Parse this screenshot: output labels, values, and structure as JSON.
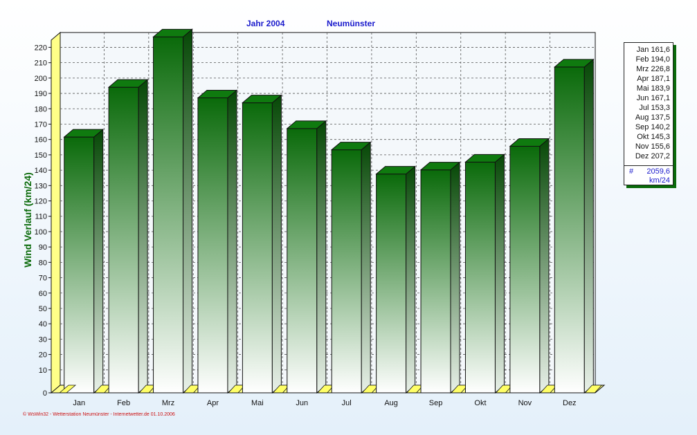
{
  "chart_data": {
    "type": "bar",
    "title_year": "Jahr  2004",
    "title_station": "Neumünster",
    "ylabel": "Wind Verlauf  (km/24)",
    "ylim": [
      0,
      230
    ],
    "yticks": [
      0,
      10,
      20,
      30,
      40,
      50,
      60,
      70,
      80,
      90,
      100,
      110,
      120,
      130,
      140,
      150,
      160,
      170,
      180,
      190,
      200,
      210,
      220
    ],
    "grid": true,
    "categories": [
      "Jan",
      "Feb",
      "Mrz",
      "Apr",
      "Mai",
      "Jun",
      "Jul",
      "Aug",
      "Sep",
      "Okt",
      "Nov",
      "Dez"
    ],
    "values": [
      161.6,
      194.0,
      226.8,
      187.1,
      183.9,
      167.1,
      153.3,
      137.5,
      140.2,
      145.3,
      155.6,
      207.2
    ],
    "legend": {
      "placement": "right",
      "entries": [
        {
          "label": "Jan",
          "value": "161,6"
        },
        {
          "label": "Feb",
          "value": "194,0"
        },
        {
          "label": "Mrz",
          "value": "226,8"
        },
        {
          "label": "Apr",
          "value": "187,1"
        },
        {
          "label": "Mai",
          "value": "183,9"
        },
        {
          "label": "Jun",
          "value": "167,1"
        },
        {
          "label": "Jul",
          "value": "153,3"
        },
        {
          "label": "Aug",
          "value": "137,5"
        },
        {
          "label": "Sep",
          "value": "140,2"
        },
        {
          "label": "Okt",
          "value": "145,3"
        },
        {
          "label": "Nov",
          "value": "155,6"
        },
        {
          "label": "Dez",
          "value": "207,2"
        }
      ],
      "total_symbol": "#",
      "total": "2059,6",
      "unit": "km/24"
    },
    "colors": {
      "bar_top": "#0a6a0a",
      "bar_bottom": "#ffffff",
      "floor": "#ffff88",
      "title": "#1a1acc",
      "ylabel": "#0a6a0a"
    }
  },
  "footer": "© WsWin32 - Wetterstation Neumünster - Internetwetter.de  01.10.2006"
}
